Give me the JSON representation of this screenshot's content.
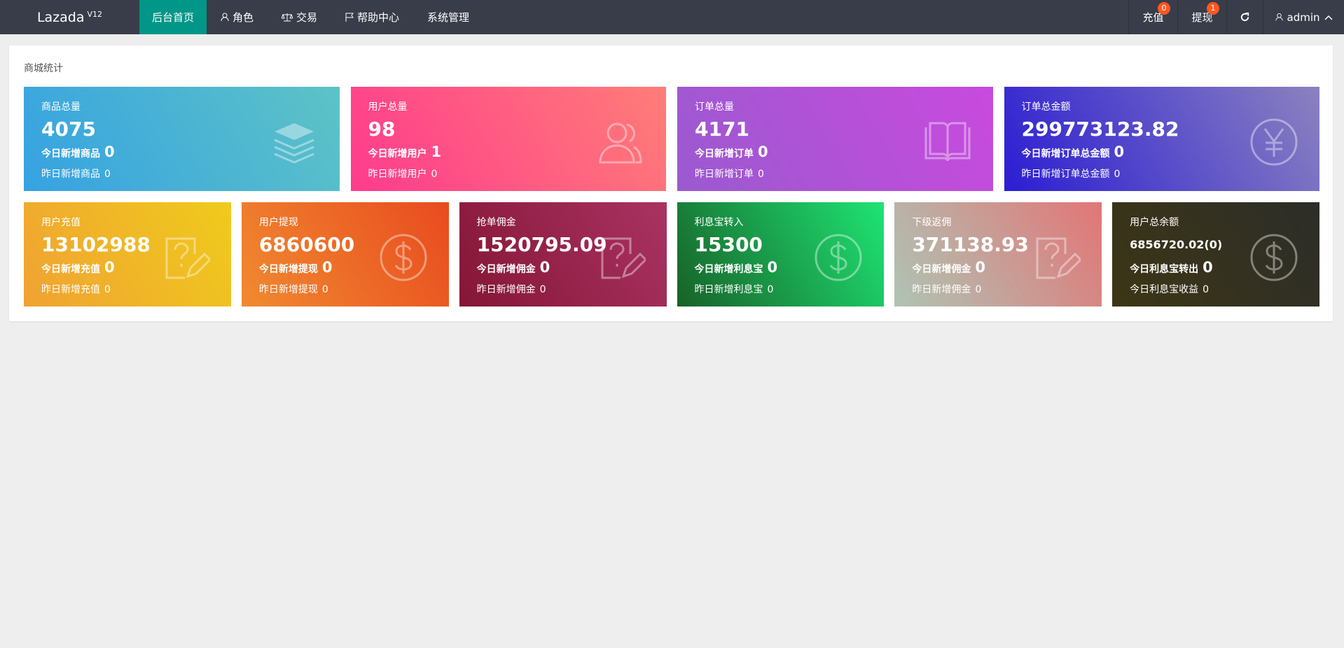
{
  "header": {
    "logo": "Lazada",
    "version": "V12",
    "nav": [
      "后台首页",
      "角色",
      "交易",
      "帮助中心",
      "系统管理"
    ],
    "right": [
      {
        "label": "充值",
        "badge": 0
      },
      {
        "label": "提现",
        "badge": 1
      }
    ],
    "user": "admin"
  },
  "panel": {
    "title": "商城统计",
    "cards": [
      {
        "title": "商品总量",
        "value": 4075,
        "today_label": "今日新增商品",
        "today_value": 0,
        "yesterday_label": "昨日新增商品",
        "yesterday_value": 0
      },
      {
        "title": "用户总量",
        "value": 98,
        "today_label": "今日新增用户",
        "today_value": 1,
        "yesterday_label": "昨日新增用户",
        "yesterday_value": 0
      },
      {
        "title": "订单总量",
        "value": 4171,
        "today_label": "今日新增订单",
        "today_value": 0,
        "yesterday_label": "昨日新增订单",
        "yesterday_value": 0
      },
      {
        "title": "订单总金额",
        "value": 299773123.82,
        "today_label": "今日新增订单总金额",
        "today_value": 0,
        "yesterday_label": "昨日新增订单总金额",
        "yesterday_value": 0
      },
      {
        "title": "用户充值",
        "value": 13102988,
        "today_label": "今日新增充值",
        "today_value": 0,
        "yesterday_label": "昨日新增充值",
        "yesterday_value": 0
      },
      {
        "title": "用户提现",
        "value": 6860600,
        "today_label": "今日新增提现",
        "today_value": 0,
        "yesterday_label": "昨日新增提现",
        "yesterday_value": 0
      },
      {
        "title": "抢单佣金",
        "value": 1520795.09,
        "today_label": "今日新增佣金",
        "today_value": 0,
        "yesterday_label": "昨日新增佣金",
        "yesterday_value": 0
      },
      {
        "title": "利息宝转入",
        "value": 15300,
        "today_label": "今日新增利息宝",
        "today_value": 0,
        "yesterday_label": "昨日新增利息宝",
        "yesterday_value": 0
      },
      {
        "title": "下级返佣",
        "value": 371138.93,
        "today_label": "今日新增佣金",
        "today_value": 0,
        "yesterday_label": "昨日新增佣金",
        "yesterday_value": 0
      },
      {
        "title": "用户总余额",
        "value": "6856720.02(0)",
        "today_label": "今日利息宝转出",
        "today_value": 0,
        "yesterday_label": "今日利息宝收益",
        "yesterday_value": 0
      }
    ]
  }
}
